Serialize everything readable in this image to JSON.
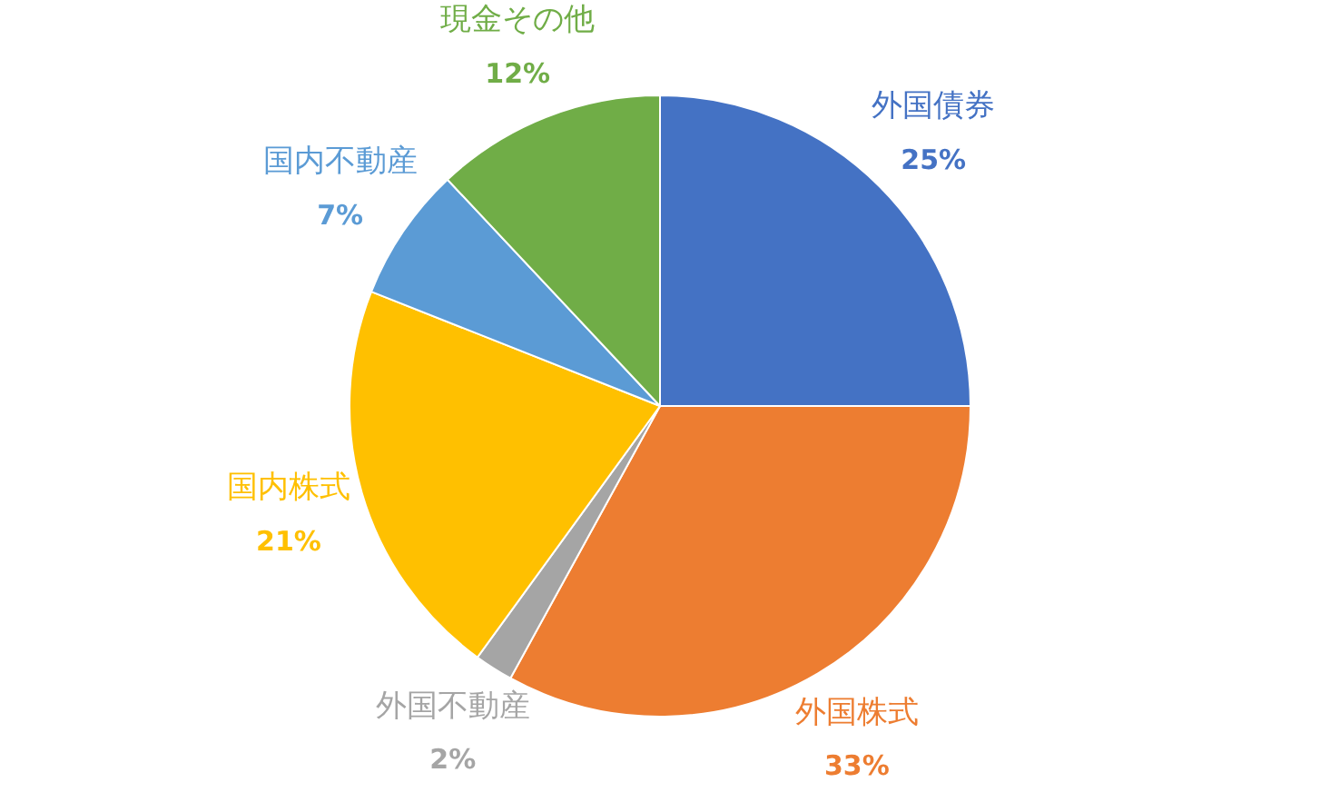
{
  "chart_data": {
    "type": "pie",
    "categories": [
      "外国債券",
      "外国株式",
      "外国不動産",
      "国内株式",
      "国内不動産",
      "現金その他"
    ],
    "values": [
      25,
      33,
      2,
      21,
      7,
      12
    ],
    "colors": [
      "#4472c4",
      "#ed7d31",
      "#a5a5a5",
      "#ffc000",
      "#5b9bd5",
      "#70ad47"
    ],
    "value_labels": [
      "25%",
      "33%",
      "2%",
      "21%",
      "7%",
      "12%"
    ],
    "legend": false
  }
}
